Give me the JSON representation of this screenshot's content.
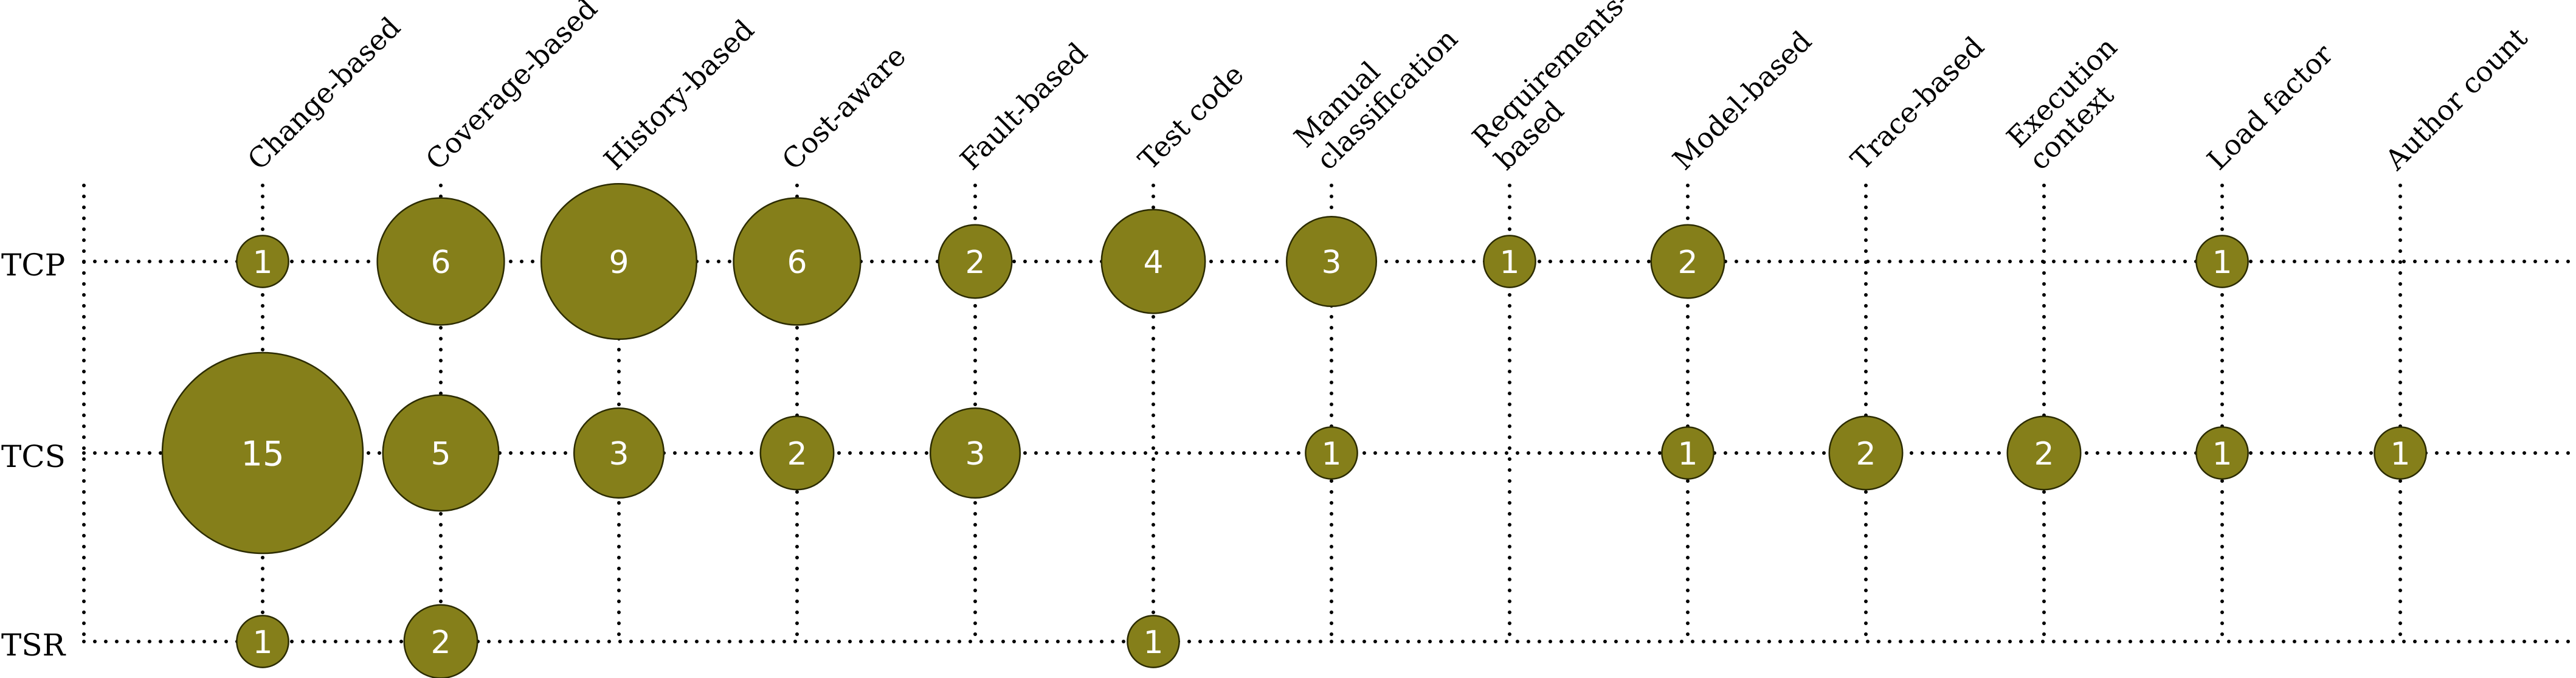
{
  "chart_data": {
    "type": "bubble",
    "title": "",
    "xlabel": "",
    "ylabel": "",
    "categories": [
      "Change-based",
      "Coverage-based",
      "History-based",
      "Cost-aware",
      "Fault-based",
      "Test code",
      "Manual classification",
      "Requirements-based",
      "Model-based",
      "Trace-based",
      "Execution context",
      "Load factor",
      "Author count"
    ],
    "category_labels": [
      [
        "Change-based"
      ],
      [
        "Coverage-based"
      ],
      [
        "History-based"
      ],
      [
        "Cost-aware"
      ],
      [
        "Fault-based"
      ],
      [
        "Test code"
      ],
      [
        "Manual",
        "classification"
      ],
      [
        "Requirements-",
        "based"
      ],
      [
        "Model-based"
      ],
      [
        "Trace-based"
      ],
      [
        "Execution",
        "context"
      ],
      [
        "Load factor"
      ],
      [
        "Author count"
      ]
    ],
    "rows": [
      "TCP",
      "TCS",
      "TSR"
    ],
    "values": [
      [
        1,
        6,
        9,
        6,
        2,
        4,
        3,
        1,
        2,
        null,
        null,
        1,
        null
      ],
      [
        15,
        5,
        3,
        2,
        3,
        null,
        1,
        null,
        1,
        2,
        2,
        1,
        1
      ],
      [
        1,
        2,
        null,
        null,
        null,
        1,
        null,
        null,
        null,
        null,
        null,
        null,
        null
      ]
    ],
    "bubble_color": "#857f1a",
    "label_color": "#ffffff",
    "grid": true,
    "grid_style": "dotted",
    "legend": "none"
  }
}
